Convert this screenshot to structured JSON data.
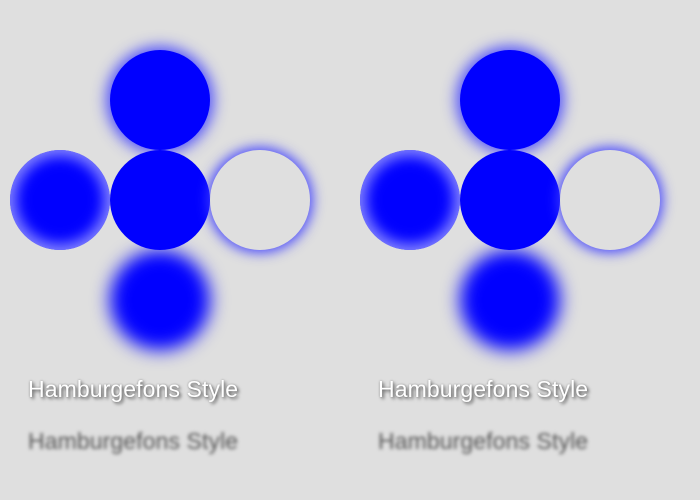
{
  "panels": [
    {
      "label_shadow": "Hamburgefons Style",
      "label_blur": "Hamburgefons Style"
    },
    {
      "label_shadow": "Hamburgefons Style",
      "label_blur": "Hamburgefons Style"
    }
  ],
  "colors": {
    "background": "#dfdfdf",
    "circle_fill": "#0000ff",
    "glow": "#3c3cff",
    "label_shadow_text": "#ffffff",
    "label_blur_text": "#555555"
  }
}
